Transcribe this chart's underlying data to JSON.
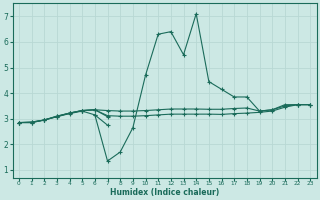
{
  "xlabel": "Humidex (Indice chaleur)",
  "xlim": [
    -0.5,
    23.5
  ],
  "ylim": [
    0.7,
    7.5
  ],
  "xticks": [
    0,
    1,
    2,
    3,
    4,
    5,
    6,
    7,
    8,
    9,
    10,
    11,
    12,
    13,
    14,
    15,
    16,
    17,
    18,
    19,
    20,
    21,
    22,
    23
  ],
  "yticks": [
    1,
    2,
    3,
    4,
    5,
    6,
    7
  ],
  "background_color": "#cce8e4",
  "grid_color": "#b8d8d4",
  "line_color": "#1a6b5a",
  "lines": [
    {
      "x": [
        0,
        1,
        2,
        3,
        4,
        5,
        6,
        7,
        8,
        9,
        10,
        11,
        12,
        13,
        14,
        15,
        16,
        17,
        18,
        19,
        20,
        21,
        22,
        23
      ],
      "y": [
        2.85,
        2.85,
        2.95,
        3.08,
        3.2,
        3.3,
        3.15,
        2.75,
        null,
        null,
        null,
        null,
        null,
        null,
        null,
        null,
        null,
        null,
        null,
        null,
        null,
        null,
        null,
        null
      ]
    },
    {
      "x": [
        0,
        1,
        2,
        3,
        4,
        5,
        6,
        7,
        8,
        9,
        10,
        11,
        12,
        13,
        14,
        15,
        16,
        17,
        18,
        19,
        20,
        21,
        22,
        23
      ],
      "y": [
        2.85,
        2.85,
        2.95,
        3.08,
        3.22,
        3.32,
        3.35,
        3.08,
        null,
        null,
        null,
        null,
        null,
        null,
        null,
        null,
        null,
        null,
        null,
        null,
        null,
        null,
        null,
        null
      ]
    },
    {
      "x": [
        0,
        1,
        2,
        3,
        4,
        5,
        6,
        7,
        8,
        9,
        10,
        11,
        12,
        13,
        14,
        15,
        16,
        17,
        18,
        19,
        20,
        21,
        22,
        23
      ],
      "y": [
        2.85,
        2.87,
        2.95,
        3.1,
        3.22,
        3.32,
        3.35,
        3.32,
        3.3,
        3.3,
        3.32,
        3.35,
        3.38,
        3.38,
        3.38,
        3.37,
        3.37,
        3.4,
        3.42,
        3.3,
        3.35,
        3.5,
        3.55,
        3.55
      ]
    },
    {
      "x": [
        0,
        1,
        2,
        3,
        4,
        5,
        6,
        7,
        8,
        9,
        10,
        11,
        12,
        13,
        14,
        15,
        16,
        17,
        18,
        19,
        20,
        21,
        22,
        23
      ],
      "y": [
        2.85,
        2.87,
        2.95,
        3.1,
        3.22,
        3.32,
        3.35,
        3.12,
        3.1,
        3.1,
        3.12,
        3.15,
        3.18,
        3.18,
        3.18,
        3.18,
        3.17,
        3.2,
        3.22,
        3.25,
        3.3,
        3.45,
        3.55,
        3.55
      ]
    },
    {
      "x": [
        6,
        7,
        8,
        9,
        10,
        11,
        12,
        13,
        14,
        15,
        16,
        17,
        18,
        19,
        20,
        21,
        22,
        23
      ],
      "y": [
        3.15,
        1.35,
        1.7,
        2.65,
        4.7,
        6.3,
        6.4,
        5.5,
        7.1,
        4.45,
        4.15,
        3.85,
        3.85,
        3.3,
        3.35,
        3.55,
        3.55,
        3.55
      ]
    }
  ]
}
